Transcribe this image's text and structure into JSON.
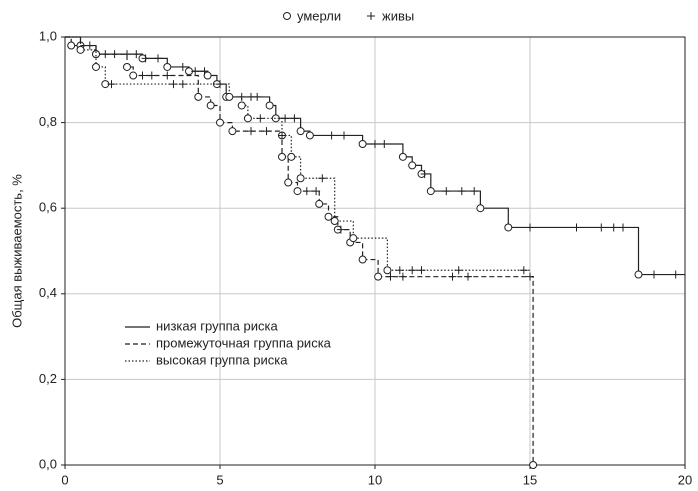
{
  "chart_data": {
    "type": "survival",
    "legend_markers": {
      "death": "умерли",
      "censored": "живы"
    },
    "ylabel": "Общая выживаемость, %",
    "xlim": [
      0,
      20
    ],
    "xticks": [
      0,
      5,
      10,
      15,
      20
    ],
    "ylim": [
      0,
      1
    ],
    "yticks": [
      {
        "value": 0,
        "label": "0,0"
      },
      {
        "value": 0.2,
        "label": "0,2"
      },
      {
        "value": 0.4,
        "label": "0,4"
      },
      {
        "value": 0.6,
        "label": "0,6"
      },
      {
        "value": 0.8,
        "label": "0,8"
      },
      {
        "value": 1,
        "label": "1,0"
      }
    ],
    "grid": true,
    "series": [
      {
        "name": "низкая группа риска",
        "color": "#222222",
        "dash": "solid",
        "x": [
          0,
          0.5,
          1,
          2.5,
          3.3,
          4,
          4.6,
          4.9,
          5.2,
          6.6,
          6.8,
          7.6,
          7.9,
          9.6,
          10.9,
          11.2,
          11.5,
          11.8,
          13.4,
          14.3,
          18.5
        ],
        "values": [
          1.0,
          0.98,
          0.96,
          0.95,
          0.93,
          0.92,
          0.91,
          0.89,
          0.86,
          0.84,
          0.81,
          0.78,
          0.77,
          0.75,
          0.72,
          0.7,
          0.68,
          0.64,
          0.6,
          0.555,
          0.445
        ],
        "end_x": 20,
        "censored": [
          0.8,
          1.3,
          1.6,
          2,
          2.3,
          2.6,
          3,
          3.8,
          4.2,
          4.5,
          5.7,
          6,
          6.2,
          7.1,
          7.4,
          8.6,
          9,
          10,
          10.3,
          11.6,
          12.3,
          12.8,
          13.2,
          15,
          16.5,
          17.3,
          17.7,
          18,
          19,
          19.7
        ]
      },
      {
        "name": "промежуточная группа риска",
        "color": "#222222",
        "dash": "dashed",
        "x": [
          0,
          0.2,
          1,
          2,
          2.2,
          4.3,
          4.7,
          5,
          5.4,
          7,
          7.2,
          7.5,
          8.2,
          8.5,
          8.8,
          9.2,
          9.6,
          10.1,
          15.1
        ],
        "values": [
          1.0,
          0.98,
          0.96,
          0.93,
          0.91,
          0.86,
          0.84,
          0.8,
          0.78,
          0.72,
          0.66,
          0.64,
          0.61,
          0.58,
          0.55,
          0.52,
          0.48,
          0.44,
          0.0
        ],
        "end_x": 15.1,
        "censored": [
          2.5,
          2.8,
          3.3,
          6,
          6.5,
          7.8,
          8.1,
          8.9,
          10.5,
          10.9,
          12.5,
          13,
          15
        ]
      },
      {
        "name": "высокая группа риска",
        "color": "#222222",
        "dash": "dotted",
        "x": [
          0,
          0.5,
          1,
          1.3,
          5.3,
          5.7,
          5.9,
          7,
          7.3,
          7.6,
          8.7,
          9.3,
          10.4
        ],
        "values": [
          1.0,
          0.97,
          0.93,
          0.89,
          0.86,
          0.84,
          0.81,
          0.77,
          0.72,
          0.67,
          0.57,
          0.53,
          0.455
        ],
        "end_x": 15,
        "censored": [
          1.5,
          3.5,
          3.8,
          5,
          6.3,
          7,
          8.3,
          10.8,
          11.2,
          11.5,
          12.7,
          14.8
        ]
      }
    ]
  }
}
